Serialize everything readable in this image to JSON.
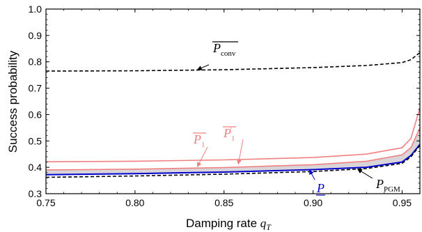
{
  "chart_data": {
    "type": "line",
    "xlabel": "Damping rate",
    "xlabel_symbol": "q",
    "xlabel_sub": "T",
    "ylabel": "Success probability",
    "xlim": [
      0.75,
      0.96
    ],
    "ylim": [
      0.3,
      1.0
    ],
    "xticks": [
      0.75,
      0.8,
      0.85,
      0.9,
      0.95
    ],
    "xtick_labels": [
      "0.75",
      "0.80",
      "0.85",
      "0.90",
      "0.95"
    ],
    "yticks": [
      0.3,
      0.4,
      0.5,
      0.6,
      0.7,
      0.8,
      0.9,
      1.0
    ],
    "ytick_labels": [
      "0.3",
      "0.4",
      "0.5",
      "0.6",
      "0.7",
      "0.8",
      "0.9",
      "1.0"
    ],
    "grid": false,
    "series": [
      {
        "key": "p_conv_bar",
        "color": "#000000",
        "style": "dashed",
        "x": [
          0.75,
          0.8,
          0.85,
          0.9,
          0.93,
          0.95,
          0.955,
          0.96
        ],
        "y": [
          0.765,
          0.766,
          0.77,
          0.778,
          0.786,
          0.797,
          0.808,
          0.835
        ]
      },
      {
        "key": "p1_bar",
        "color": "#f08080",
        "style": "solid",
        "x": [
          0.75,
          0.8,
          0.85,
          0.9,
          0.93,
          0.95,
          0.955,
          0.96
        ],
        "y": [
          0.421,
          0.423,
          0.428,
          0.437,
          0.45,
          0.474,
          0.51,
          0.625
        ]
      },
      {
        "key": "p1_prime_bar",
        "color": "#f08080",
        "style": "solid",
        "x": [
          0.75,
          0.8,
          0.85,
          0.9,
          0.93,
          0.95,
          0.955,
          0.96
        ],
        "y": [
          0.39,
          0.393,
          0.399,
          0.41,
          0.423,
          0.447,
          0.475,
          0.55
        ]
      },
      {
        "key": "p_under",
        "color": "#0000cc",
        "style": "solid",
        "x": [
          0.75,
          0.8,
          0.85,
          0.9,
          0.93,
          0.95,
          0.955,
          0.96
        ],
        "y": [
          0.372,
          0.376,
          0.382,
          0.391,
          0.4,
          0.42,
          0.445,
          0.487
        ]
      },
      {
        "key": "p_pgm",
        "color": "#000000",
        "style": "dashed",
        "x": [
          0.75,
          0.8,
          0.85,
          0.9,
          0.93,
          0.95,
          0.955,
          0.96
        ],
        "y": [
          0.362,
          0.367,
          0.374,
          0.384,
          0.395,
          0.415,
          0.44,
          0.483
        ]
      }
    ],
    "shaded_band": {
      "between": [
        "p1_prime_bar",
        "p_under"
      ],
      "color": "#d8d4d8"
    },
    "annotations": [
      {
        "key": "conv",
        "text": "P",
        "sub": "conv",
        "overline": true,
        "underline": false,
        "color": "#000000",
        "x_data": 0.835,
        "y_data": 0.77
      },
      {
        "key": "p1",
        "text": "P",
        "sub": "1",
        "prime": "",
        "overline": true,
        "underline": false,
        "color": "#f08080",
        "x_data": 0.835,
        "y_data": 0.402
      },
      {
        "key": "p1prime",
        "text": "P",
        "sub": "1",
        "prime": "′",
        "overline": true,
        "underline": false,
        "color": "#f08080",
        "x_data": 0.858,
        "y_data": 0.412
      },
      {
        "key": "punder",
        "text": "P",
        "sub": "",
        "overline": false,
        "underline": true,
        "color": "#0000cc",
        "x_data": 0.898,
        "y_data": 0.39
      },
      {
        "key": "ppgm",
        "text": "P",
        "sub": "PGM",
        "overline": false,
        "underline": false,
        "color": "#000000",
        "x_data": 0.925,
        "y_data": 0.393
      }
    ]
  }
}
